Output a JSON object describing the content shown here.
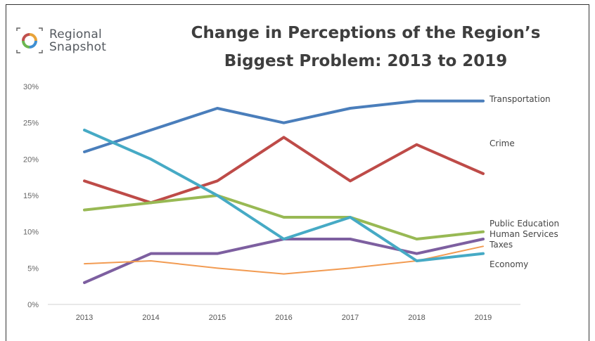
{
  "logo": {
    "line1": "Regional",
    "line2": "Snapshot",
    "colors": [
      "#e8a33a",
      "#3f8fd2",
      "#6cb650",
      "#c0504d"
    ]
  },
  "title": {
    "line1": "Change in Perceptions of the Region’s",
    "line2": "Biggest Problem: 2013 to 2019"
  },
  "chart_data": {
    "type": "line",
    "title": "Change in Perceptions of the Region’s Biggest Problem: 2013 to 2019",
    "xlabel": "",
    "ylabel": "",
    "x": [
      "2013",
      "2014",
      "2015",
      "2016",
      "2017",
      "2018",
      "2019"
    ],
    "ylim": [
      0,
      30
    ],
    "yticks": [
      0,
      5,
      10,
      15,
      20,
      25,
      30
    ],
    "ytick_labels": [
      "0%",
      "5%",
      "10%",
      "15%",
      "20%",
      "25%",
      "30%"
    ],
    "grid": false,
    "legend": "inline labels at right end of lines",
    "series": [
      {
        "name": "Transportation",
        "color": "#4a7ebb",
        "values": [
          21,
          24,
          27,
          25,
          27,
          28,
          28
        ]
      },
      {
        "name": "Crime",
        "color": "#be4b48",
        "values": [
          17,
          14,
          17,
          23,
          17,
          22,
          18
        ]
      },
      {
        "name": "Public Education",
        "color": "#98b954",
        "values": [
          13,
          14,
          15,
          12,
          12,
          9,
          10
        ]
      },
      {
        "name": "Human Services",
        "color": "#7d5fa0",
        "values": [
          3,
          7,
          7,
          9,
          9,
          7,
          9
        ]
      },
      {
        "name": "Taxes",
        "color": "#f29b52",
        "values": [
          5.6,
          6,
          5,
          4.2,
          5,
          6,
          8
        ]
      },
      {
        "name": "Economy",
        "color": "#46aac5",
        "values": [
          24,
          20,
          15,
          9,
          12,
          6,
          7
        ]
      }
    ]
  }
}
